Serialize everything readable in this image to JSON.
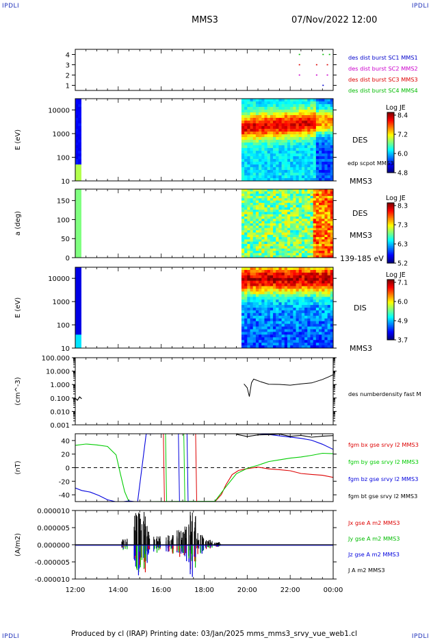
{
  "corners": {
    "tl": "IPDLI",
    "tr": "IPDLI",
    "bl": "IPDLI",
    "br": "IPDLI"
  },
  "header": {
    "spacecraft": "MMS3",
    "datetime": "07/Nov/2022 12:00"
  },
  "footer": "Produced by cl (IRAP)   Printing date: 03/Jan/2025   mms_mms3_srvy_vue_web1.cl",
  "chart_data": [
    {
      "type": "scatter",
      "ylim": [
        0.5,
        4.5
      ],
      "yticks": [
        "1",
        "2",
        "3",
        "4"
      ],
      "legend": [
        {
          "name": "des dist burst SC1 MMS1",
          "color": "#0000cc"
        },
        {
          "name": "des dist burst SC2 MMS2",
          "color": "#cc00cc"
        },
        {
          "name": "des dist burst SC3 MMS3",
          "color": "#dd0000"
        },
        {
          "name": "des dist burst SC4 MMS4",
          "color": "#00bb00"
        }
      ],
      "points": [
        {
          "x": 22.4,
          "y": 2
        },
        {
          "x": 23.2,
          "y": 2
        },
        {
          "x": 23.7,
          "y": 2
        },
        {
          "x": 22.4,
          "y": 3
        },
        {
          "x": 23.2,
          "y": 3
        },
        {
          "x": 23.7,
          "y": 3
        },
        {
          "x": 22.4,
          "y": 4
        },
        {
          "x": 23.5,
          "y": 4
        },
        {
          "x": 23.8,
          "y": 4
        },
        {
          "x": 23.5,
          "y": 1
        }
      ]
    },
    {
      "type": "heatmap",
      "ylabel": "E (eV)",
      "yscale": "log",
      "ylim": [
        10,
        30000
      ],
      "yticks": [
        "10",
        "100",
        "1000",
        "10000"
      ],
      "right_labels": [
        "DES",
        "edp scpot MMS3",
        "MMS3"
      ],
      "colorbar": {
        "title": "Log JE",
        "range": [
          4.8,
          8.4
        ],
        "ticks": [
          "8.4",
          "7.2",
          "6.0",
          "4.8"
        ]
      }
    },
    {
      "type": "heatmap",
      "ylabel": "a (deg)",
      "ylim": [
        0,
        180
      ],
      "yticks": [
        "0",
        "50",
        "100",
        "150"
      ],
      "right_labels": [
        "DES",
        "MMS3",
        "139-185 eV"
      ],
      "colorbar": {
        "title": "Log JE",
        "range": [
          5.2,
          8.3
        ],
        "ticks": [
          "8.3",
          "7.3",
          "6.3",
          "5.2"
        ]
      }
    },
    {
      "type": "heatmap",
      "ylabel": "E (eV)",
      "yscale": "log",
      "ylim": [
        10,
        30000
      ],
      "yticks": [
        "10",
        "100",
        "1000",
        "10000"
      ],
      "right_labels": [
        "DIS",
        "MMS3"
      ],
      "colorbar": {
        "title": "Log JE",
        "range": [
          3.7,
          7.1
        ],
        "ticks": [
          "7.1",
          "6.0",
          "4.9",
          "3.7"
        ]
      }
    },
    {
      "type": "line",
      "ylabel": "(cm^-3)",
      "yscale": "log",
      "ylim": [
        0.001,
        100
      ],
      "yticks": [
        "0.001",
        "0.010",
        "0.100",
        "1.000",
        "10.000",
        "100.000"
      ],
      "series": [
        {
          "name": "des numberdensity fast M",
          "color": "#000000",
          "x": [
            12.0,
            12.1,
            12.2,
            12.3,
            19.85,
            20.0,
            20.1,
            20.2,
            20.3,
            20.6,
            21.0,
            21.5,
            22.0,
            22.5,
            23.0,
            23.5,
            23.8,
            24.0
          ],
          "y": [
            0.1,
            0.06,
            0.12,
            0.08,
            1.1,
            0.6,
            0.15,
            1.5,
            2.2,
            1.7,
            1.2,
            0.95,
            0.9,
            1.0,
            1.5,
            2.3,
            3.5,
            5.5
          ]
        }
      ]
    },
    {
      "type": "line",
      "ylabel": "(nT)",
      "ylim": [
        -50,
        50
      ],
      "yticks": [
        "-40",
        "-20",
        "0",
        "20",
        "40"
      ],
      "series": [
        {
          "name": "fgm bx gse srvy l2 MMS3",
          "color": "#dd0000",
          "x": [
            18.5,
            18.8,
            19.0,
            19.3,
            19.6,
            20.0,
            20.5,
            21.0,
            21.5,
            22.0,
            22.5,
            23.0,
            23.5,
            24.0
          ],
          "y": [
            -50,
            -40,
            -25,
            -10,
            -3,
            0,
            0,
            -2,
            -4,
            -6,
            -8,
            -9,
            -11,
            -15
          ]
        },
        {
          "name": "fgm by gse srvy l2 MMS3",
          "color": "#00cc00",
          "x": [
            12.0,
            12.5,
            13.0,
            13.5,
            13.9,
            14.1,
            14.3,
            14.5,
            18.5,
            19.0,
            19.5,
            20.0,
            20.5,
            21.0,
            21.5,
            22.0,
            22.5,
            23.0,
            23.5,
            24.0
          ],
          "y": [
            33,
            35,
            35,
            31,
            20,
            -8,
            -35,
            -50,
            -50,
            -30,
            -10,
            0,
            5,
            8,
            10,
            13,
            15,
            18,
            20,
            22
          ]
        },
        {
          "name": "fgm bz gse srvy l2 MMS3",
          "color": "#0000dd",
          "x": [
            12.0,
            12.3,
            12.7,
            13.1,
            13.5,
            14.0,
            14.5,
            14.9,
            15.3,
            20.0,
            21.0,
            22.0,
            22.5,
            23.0,
            23.5,
            24.0
          ],
          "y": [
            -30,
            -33,
            -37,
            -42,
            -46,
            -50,
            -50,
            -50,
            50,
            50,
            49,
            46,
            43,
            39,
            34,
            28
          ]
        },
        {
          "name": "fgm bt gse srvy l2 MMS3",
          "color": "#000000",
          "x": [
            19.5,
            20.0,
            20.5,
            21.0,
            21.5,
            22.0,
            22.5,
            23.0,
            23.5,
            24.0
          ],
          "y": [
            49,
            47,
            48,
            50,
            48,
            47,
            48,
            46,
            47,
            46
          ]
        }
      ]
    },
    {
      "type": "line",
      "ylabel": "(A/m2)",
      "ylim": [
        -1e-05,
        1e-05
      ],
      "yticks": [
        "-0.000010",
        "-0.000005",
        "0.000000",
        "0.000005",
        "0.000010"
      ],
      "xlim": [
        12,
        24
      ],
      "xticks": [
        "12:00",
        "14:00",
        "16:00",
        "18:00",
        "20:00",
        "22:00",
        "00:00"
      ],
      "series": [
        {
          "name": "Jx gse A m2 MMS3",
          "color": "#dd0000"
        },
        {
          "name": "Jy gse A m2 MMS3",
          "color": "#00bb00"
        },
        {
          "name": "Jz gse A m2 MMS3",
          "color": "#0000dd"
        },
        {
          "name": "J A m2 MMS3",
          "color": "#000000"
        }
      ],
      "bursts": [
        {
          "x": 14.3,
          "amp": 0.2
        },
        {
          "x": 14.9,
          "amp": 0.95
        },
        {
          "x": 15.1,
          "amp": 1.0
        },
        {
          "x": 15.35,
          "amp": 0.55
        },
        {
          "x": 15.8,
          "amp": 0.25
        },
        {
          "x": 16.4,
          "amp": 0.3
        },
        {
          "x": 16.9,
          "amp": 0.45
        },
        {
          "x": 17.25,
          "amp": 0.6
        },
        {
          "x": 17.45,
          "amp": 1.0
        },
        {
          "x": 17.8,
          "amp": 0.35
        },
        {
          "x": 18.2,
          "amp": 0.15
        },
        {
          "x": 18.6,
          "amp": 0.08
        }
      ]
    }
  ]
}
